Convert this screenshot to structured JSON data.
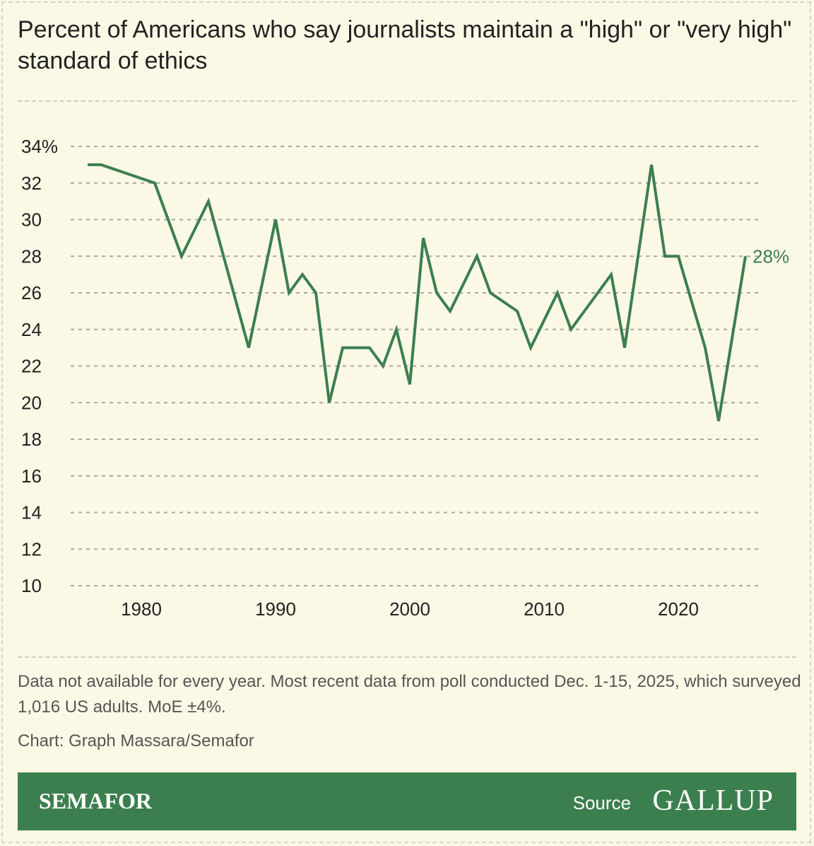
{
  "title": "Percent of Americans who say journalists maintain a \"high\" or \"very high\" standard of ethics",
  "note": "Data not available for every year. Most recent data from poll conducted Dec. 1-15, 2025, which surveyed 1,016 US adults. MoE ±4%.",
  "credit": "Chart: Graph Massara/Semafor",
  "footer": {
    "brand": "SEMAFOR",
    "source_label": "Source",
    "source_logo": "GALLUP"
  },
  "colors": {
    "line": "#3c7f4f",
    "background": "#fbf9e6",
    "footer": "#3c7f4f"
  },
  "chart_data": {
    "type": "line",
    "title": "Percent of Americans who say journalists maintain a \"high\" or \"very high\" standard of ethics",
    "xlabel": "",
    "ylabel": "",
    "ylim": [
      10,
      34
    ],
    "xlim": [
      1976,
      2025
    ],
    "grid": true,
    "y_ticks": [
      "34%",
      "32",
      "30",
      "28",
      "26",
      "24",
      "22",
      "20",
      "18",
      "16",
      "14",
      "12",
      "10"
    ],
    "x_ticks": [
      "1980",
      "1990",
      "2000",
      "2010",
      "2020"
    ],
    "end_label": "28%",
    "x": [
      1976,
      1977,
      1981,
      1983,
      1985,
      1988,
      1990,
      1991,
      1992,
      1993,
      1994,
      1995,
      1996,
      1997,
      1998,
      1999,
      2000,
      2001,
      2002,
      2003,
      2005,
      2006,
      2008,
      2009,
      2011,
      2012,
      2015,
      2016,
      2018,
      2019,
      2020,
      2022,
      2023,
      2025
    ],
    "values": [
      33,
      33,
      32,
      28,
      31,
      23,
      30,
      26,
      27,
      26,
      20,
      23,
      23,
      23,
      22,
      24,
      21,
      29,
      26,
      25,
      28,
      26,
      25,
      23,
      26,
      24,
      27,
      23,
      33,
      28,
      28,
      23,
      19,
      28
    ]
  }
}
